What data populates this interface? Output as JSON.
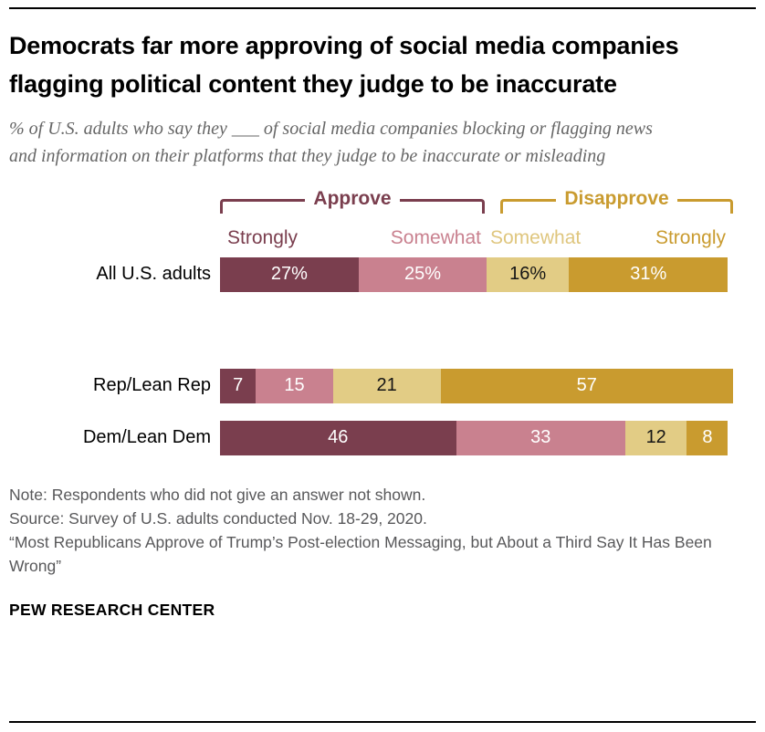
{
  "header": {
    "title": "Democrats far more approving of social media companies flagging political content they judge to be inaccurate",
    "subtitle": "% of U.S. adults who say they ___ of social media companies blocking or flagging news and information on their platforms that they judge to be inaccurate or misleading"
  },
  "legend": {
    "approve_label": "Approve",
    "disapprove_label": "Disapprove",
    "sub_labels": [
      {
        "text": "Strongly",
        "color": "#7a3e4e"
      },
      {
        "text": "Somewhat",
        "color": "#c9818f"
      },
      {
        "text": "Somewhat",
        "color": "#dfc67e"
      },
      {
        "text": "Strongly",
        "color": "#c99b2f"
      }
    ]
  },
  "chart_data": {
    "type": "bar",
    "stacked": true,
    "orientation": "horizontal",
    "unit": "%",
    "xlim": [
      0,
      100
    ],
    "grid": false,
    "categories": [
      "All U.S. adults",
      "Rep/Lean Rep",
      "Dem/Lean Dem"
    ],
    "series": [
      {
        "key": "strongly-approve",
        "name": "Strongly approve",
        "color": "#7a3e4e",
        "label_color": "#ffffff",
        "values": [
          27,
          7,
          46
        ]
      },
      {
        "key": "somewhat-approve",
        "name": "Somewhat approve",
        "color": "#c9818f",
        "label_color": "#ffffff",
        "values": [
          25,
          15,
          33
        ]
      },
      {
        "key": "somewhat-disapprove",
        "name": "Somewhat disapprove",
        "color": "#e2cc85",
        "label_color": "#151515",
        "values": [
          16,
          21,
          12
        ]
      },
      {
        "key": "strongly-disapprove",
        "name": "Strongly disapprove",
        "color": "#c99b2f",
        "label_color": "#ffffff",
        "values": [
          31,
          57,
          8
        ]
      }
    ],
    "value_display": [
      [
        "27%",
        "25%",
        "16%",
        "31%"
      ],
      [
        "7",
        "15",
        "21",
        "57"
      ],
      [
        "46",
        "33",
        "12",
        "8"
      ]
    ]
  },
  "footer": {
    "note": "Note: Respondents who did not give an answer not shown.",
    "source": "Source: Survey of U.S. adults conducted Nov. 18-29, 2020.",
    "report": "“Most Republicans Approve of Trump’s Post-election Messaging, but About a Third Say It Has Been Wrong”",
    "brand": "PEW RESEARCH CENTER"
  }
}
